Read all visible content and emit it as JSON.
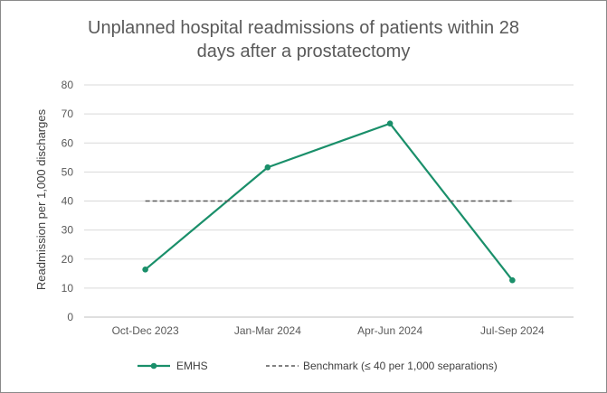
{
  "chart_data": {
    "type": "line",
    "title_line1": "Unplanned hospital readmissions of patients within 28",
    "title_line2": "days after a prostatectomy",
    "ylabel": "Readmission per 1,000 discharges",
    "xlabel": "",
    "categories": [
      "Oct-Dec 2023",
      "Jan-Mar 2024",
      "Apr-Jun 2024",
      "Jul-Sep 2024"
    ],
    "ylim": [
      0,
      80
    ],
    "yticks": [
      0,
      10,
      20,
      30,
      40,
      50,
      60,
      70,
      80
    ],
    "grid": true,
    "legend_position": "bottom",
    "series": [
      {
        "name": "EMHS",
        "values": [
          16.4,
          51.6,
          66.7,
          12.7
        ],
        "color": "#1a8f6a",
        "style": "solid-with-markers"
      },
      {
        "name": "Benchmark (≤ 40 per 1,000 separations)",
        "values": [
          40,
          40,
          40,
          40
        ],
        "color": "#595959",
        "style": "dashed"
      }
    ]
  }
}
